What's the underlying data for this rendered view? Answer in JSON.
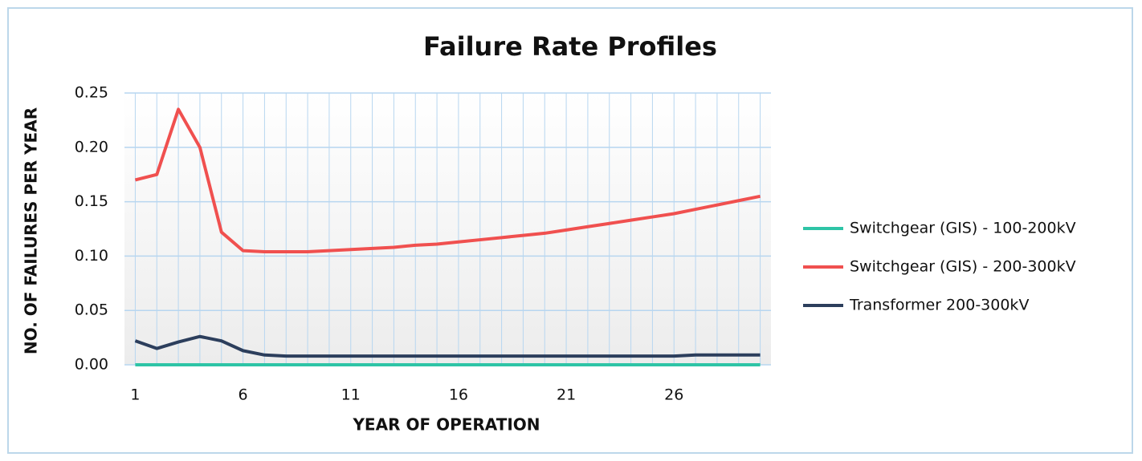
{
  "chart_data": {
    "type": "line",
    "title": "Failure Rate Profiles",
    "x_label": "YEAR OF OPERATION",
    "y_label": "NO. OF FAILURES PER YEAR",
    "categories": [
      "1",
      null,
      null,
      null,
      null,
      "6",
      null,
      null,
      null,
      null,
      "11",
      null,
      null,
      null,
      null,
      "16",
      null,
      null,
      null,
      null,
      "21",
      null,
      null,
      null,
      null,
      "26",
      null,
      null,
      null,
      null
    ],
    "ylim": [
      0,
      0.25
    ],
    "yticks": [
      {
        "value": 0,
        "label": "0.00"
      },
      0.05,
      {
        "value": 0.1,
        "label": "0.10"
      },
      0.15,
      {
        "value": 0.2,
        "label": "0.20"
      },
      0.25
    ],
    "grid": true,
    "legend": "right",
    "series": [
      {
        "name": "Switchgear (GIS) - 100-200kV",
        "color": "#2ec4a6",
        "values": [
          0,
          0,
          0,
          0,
          0,
          0,
          0,
          0,
          0,
          0,
          0,
          0,
          0,
          0,
          0,
          0,
          0,
          0,
          0,
          0,
          0,
          0,
          0,
          0,
          0,
          0,
          0,
          0,
          0,
          0
        ]
      },
      {
        "name": "Switchgear (GIS) - 200-300kV",
        "color": "#f0504f",
        "values": [
          0.17,
          0.175,
          0.235,
          0.2,
          0.122,
          0.105,
          0.104,
          0.104,
          0.104,
          0.105,
          0.106,
          0.107,
          0.108,
          0.11,
          0.111,
          0.113,
          0.115,
          0.117,
          0.119,
          0.121,
          0.124,
          0.127,
          0.13,
          0.133,
          0.136,
          0.139,
          0.143,
          0.147,
          0.151,
          0.155
        ]
      },
      {
        "name": "Transformer 200-300kV",
        "color": "#2c3e5c",
        "values": [
          0.022,
          0.015,
          0.021,
          0.026,
          0.022,
          0.013,
          0.009,
          0.008,
          0.008,
          0.008,
          0.008,
          0.008,
          0.008,
          0.008,
          0.008,
          0.008,
          0.008,
          0.008,
          0.008,
          0.008,
          0.008,
          0.008,
          0.008,
          0.008,
          0.008,
          0.008,
          0.009,
          0.009,
          0.009,
          0.009
        ]
      }
    ]
  }
}
